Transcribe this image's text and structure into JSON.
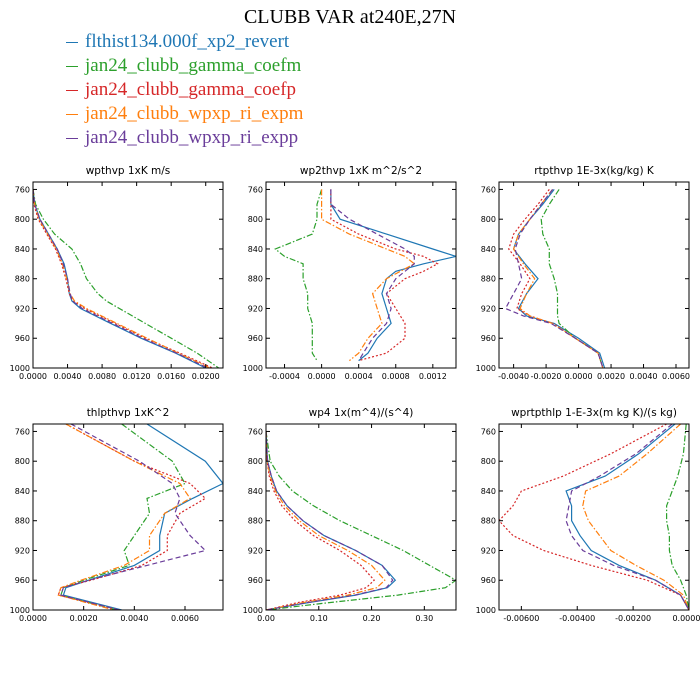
{
  "figure_title": "CLUBB VAR at240E,27N",
  "legend": [
    {
      "label": "flthist134.000f_xp2_revert",
      "color": "#1f77b4"
    },
    {
      "label": "jan24_clubb_gamma_coefm",
      "color": "#2ca02c"
    },
    {
      "label": "jan24_clubb_gamma_coefp",
      "color": "#d62728"
    },
    {
      "label": "jan24_clubb_wpxp_ri_expm",
      "color": "#ff7f0e"
    },
    {
      "label": "jan24_clubb_wpxp_ri_expp",
      "color": "#6a3d9a"
    }
  ],
  "chart_data": [
    {
      "type": "line",
      "title": "wpthvp  1xK m/s",
      "xlim": [
        0,
        0.022
      ],
      "ylim": [
        1000,
        750
      ],
      "xticks": [
        0.0,
        0.004,
        0.008,
        0.012,
        0.016,
        0.02
      ],
      "xtick_labels": [
        "0.0000",
        "0.0040",
        "0.0080",
        "0.0120",
        "0.0160",
        "0.0200"
      ],
      "yticks": [
        760,
        800,
        840,
        880,
        920,
        960,
        1000
      ],
      "ytick_labels": [
        "760",
        "800",
        "840",
        "880",
        "920",
        "960",
        "1000"
      ],
      "y": [
        760,
        780,
        800,
        820,
        840,
        860,
        880,
        900,
        910,
        920,
        940,
        960,
        980,
        1000
      ],
      "series": [
        {
          "name": "flthist134.000f_xp2_revert",
          "style": "solid",
          "values": [
            0.0,
            0.0002,
            0.0008,
            0.0018,
            0.0028,
            0.0036,
            0.004,
            0.0042,
            0.0045,
            0.0055,
            0.009,
            0.0125,
            0.0165,
            0.02
          ]
        },
        {
          "name": "jan24_clubb_gamma_coefm",
          "style": "dashdot",
          "values": [
            0.0,
            0.0003,
            0.0012,
            0.0025,
            0.0045,
            0.0055,
            0.0062,
            0.0075,
            0.0085,
            0.01,
            0.013,
            0.016,
            0.019,
            0.0215
          ]
        },
        {
          "name": "jan24_clubb_gamma_coefp",
          "style": "dotted",
          "values": [
            0.0,
            0.0001,
            0.0006,
            0.0016,
            0.0026,
            0.0033,
            0.0038,
            0.0042,
            0.0046,
            0.006,
            0.0095,
            0.013,
            0.017,
            0.0208
          ]
        },
        {
          "name": "jan24_clubb_wpxp_ri_expm",
          "style": "dashdot",
          "values": [
            0.0,
            0.0002,
            0.0007,
            0.0017,
            0.0027,
            0.0034,
            0.0039,
            0.0043,
            0.0048,
            0.0062,
            0.0097,
            0.0132,
            0.0168,
            0.0205
          ]
        },
        {
          "name": "jan24_clubb_wpxp_ri_expp",
          "style": "dashed",
          "values": [
            0.0,
            0.0002,
            0.0008,
            0.0018,
            0.0028,
            0.0035,
            0.004,
            0.0043,
            0.0046,
            0.0057,
            0.0092,
            0.0127,
            0.0166,
            0.0202
          ]
        }
      ]
    },
    {
      "type": "line",
      "title": "wp2thvp  1xK m^2/s^2",
      "xlim": [
        -0.0006,
        0.00145
      ],
      "ylim": [
        1000,
        750
      ],
      "xticks": [
        -0.0004,
        0.0,
        0.0004,
        0.0008,
        0.0012
      ],
      "xtick_labels": [
        "-0.0004",
        "0.0000",
        "0.0004",
        "0.0008",
        "0.0012"
      ],
      "yticks": [
        760,
        800,
        840,
        880,
        920,
        960,
        1000
      ],
      "ytick_labels": [
        "760",
        "800",
        "840",
        "880",
        "920",
        "960",
        "1000"
      ],
      "y": [
        760,
        780,
        800,
        820,
        840,
        850,
        860,
        870,
        880,
        900,
        920,
        940,
        960,
        980,
        990
      ],
      "series": [
        {
          "name": "flthist134.000f_xp2_revert",
          "style": "solid",
          "values": [
            0.0001,
            0.0001,
            0.0002,
            0.0007,
            0.0012,
            0.00145,
            0.0011,
            0.0008,
            0.0007,
            0.00065,
            0.0007,
            0.00075,
            0.0006,
            0.0005,
            0.0004
          ]
        },
        {
          "name": "jan24_clubb_gamma_coefm",
          "style": "dashdot",
          "values": [
            0.0,
            -5e-05,
            -5e-05,
            -0.0001,
            -0.0005,
            -0.0004,
            -0.0002,
            -0.0002,
            -0.0002,
            -0.00015,
            -0.00015,
            -0.0001,
            -0.0001,
            -0.0001,
            -5e-05
          ]
        },
        {
          "name": "jan24_clubb_gamma_coefp",
          "style": "dotted",
          "values": [
            0.0001,
            0.0001,
            0.0001,
            0.0004,
            0.0008,
            0.0011,
            0.00125,
            0.0011,
            0.0009,
            0.0007,
            0.0008,
            0.0009,
            0.0009,
            0.0007,
            0.0004
          ]
        },
        {
          "name": "jan24_clubb_wpxp_ri_expm",
          "style": "dashdot",
          "values": [
            0.0,
            0.0,
            0.0,
            0.0003,
            0.0007,
            0.0009,
            0.001,
            0.00085,
            0.0007,
            0.00055,
            0.0006,
            0.00065,
            0.0005,
            0.0004,
            0.0003
          ]
        },
        {
          "name": "jan24_clubb_wpxp_ri_expp",
          "style": "dashed",
          "values": [
            0.0001,
            0.0001,
            0.0003,
            0.0006,
            0.0009,
            0.001,
            0.001,
            0.0009,
            0.0008,
            0.0007,
            0.00075,
            0.0007,
            0.00055,
            0.00045,
            0.0004
          ]
        }
      ]
    },
    {
      "type": "line",
      "title": "rtpthvp  1E-3x(kg/kg) K",
      "xlim": [
        -0.0049,
        0.0068
      ],
      "ylim": [
        1000,
        750
      ],
      "xticks": [
        -0.004,
        -0.002,
        0.0,
        0.002,
        0.004,
        0.006
      ],
      "xtick_labels": [
        "-0.0040",
        "-0.0020",
        "0.0000",
        "0.0020",
        "0.0040",
        "0.0060"
      ],
      "yticks": [
        760,
        800,
        840,
        880,
        920,
        960,
        1000
      ],
      "ytick_labels": [
        "760",
        "800",
        "840",
        "880",
        "920",
        "960",
        "1000"
      ],
      "y": [
        760,
        780,
        800,
        820,
        840,
        860,
        880,
        900,
        920,
        930,
        940,
        960,
        980,
        1000
      ],
      "series": [
        {
          "name": "flthist134.000f_xp2_revert",
          "style": "solid",
          "values": [
            -0.0015,
            -0.0022,
            -0.003,
            -0.0037,
            -0.004,
            -0.0033,
            -0.0025,
            -0.0032,
            -0.0037,
            -0.0032,
            -0.0015,
            0.0,
            0.0013,
            0.0016
          ]
        },
        {
          "name": "jan24_clubb_gamma_coefm",
          "style": "dashdot",
          "values": [
            -0.0012,
            -0.0018,
            -0.0023,
            -0.0022,
            -0.0018,
            -0.0018,
            -0.0015,
            -0.0013,
            -0.0013,
            -0.0013,
            -0.0012,
            -0.0002,
            0.0012,
            0.0015
          ]
        },
        {
          "name": "jan24_clubb_gamma_coefp",
          "style": "dotted",
          "values": [
            -0.0018,
            -0.0025,
            -0.0033,
            -0.004,
            -0.0043,
            -0.0036,
            -0.003,
            -0.0035,
            -0.0038,
            -0.003,
            -0.0016,
            -0.0002,
            0.0012,
            0.0015
          ]
        },
        {
          "name": "jan24_clubb_wpxp_ri_expm",
          "style": "dashdot",
          "values": [
            -0.0016,
            -0.0023,
            -0.003,
            -0.0037,
            -0.004,
            -0.0034,
            -0.0027,
            -0.0032,
            -0.0036,
            -0.003,
            -0.0016,
            -0.0002,
            0.0012,
            0.0015
          ]
        },
        {
          "name": "jan24_clubb_wpxp_ri_expp",
          "style": "dashed",
          "values": [
            -0.0016,
            -0.0023,
            -0.003,
            -0.0036,
            -0.0039,
            -0.0037,
            -0.0035,
            -0.004,
            -0.0045,
            -0.0034,
            -0.0017,
            -0.0002,
            0.0012,
            0.0015
          ]
        }
      ]
    },
    {
      "type": "line",
      "title": "thlpthvp  1xK^2",
      "xlim": [
        0,
        0.0075
      ],
      "ylim": [
        1000,
        750
      ],
      "xticks": [
        0.0,
        0.002,
        0.004,
        0.006
      ],
      "xtick_labels": [
        "0.0000",
        "0.0020",
        "0.0040",
        "0.0060"
      ],
      "yticks": [
        760,
        800,
        840,
        880,
        920,
        960,
        1000
      ],
      "ytick_labels": [
        "760",
        "800",
        "840",
        "880",
        "920",
        "960",
        "1000"
      ],
      "y": [
        750,
        800,
        830,
        850,
        870,
        900,
        920,
        940,
        960,
        970,
        980,
        1000
      ],
      "series": [
        {
          "name": "flthist134.000f_xp2_revert",
          "style": "solid",
          "values": [
            0.0045,
            0.0068,
            0.0075,
            0.0063,
            0.0052,
            0.005,
            0.005,
            0.004,
            0.0022,
            0.0013,
            0.0012,
            0.0035
          ]
        },
        {
          "name": "jan24_clubb_gamma_coefm",
          "style": "dashdot",
          "values": [
            0.0035,
            0.0055,
            0.006,
            0.0045,
            0.0046,
            0.004,
            0.0036,
            0.0038,
            0.002,
            0.0012,
            0.0011,
            0.0033
          ]
        },
        {
          "name": "jan24_clubb_gamma_coefp",
          "style": "dotted",
          "values": [
            0.0013,
            0.004,
            0.0062,
            0.0068,
            0.0058,
            0.0053,
            0.0053,
            0.0043,
            0.0023,
            0.0011,
            0.001,
            0.0034
          ]
        },
        {
          "name": "jan24_clubb_wpxp_ri_expm",
          "style": "dashdot",
          "values": [
            0.0013,
            0.004,
            0.0058,
            0.0062,
            0.0052,
            0.0046,
            0.0046,
            0.0036,
            0.0019,
            0.0011,
            0.001,
            0.0032
          ]
        },
        {
          "name": "jan24_clubb_wpxp_ri_expp",
          "style": "dashed",
          "values": [
            0.0015,
            0.0042,
            0.0055,
            0.0058,
            0.0056,
            0.0062,
            0.0068,
            0.0045,
            0.0022,
            0.0012,
            0.0011,
            0.0034
          ]
        }
      ]
    },
    {
      "type": "line",
      "title": "wp4  1x(m^4)/(s^4)",
      "xlim": [
        0,
        0.36
      ],
      "ylim": [
        1000,
        750
      ],
      "xticks": [
        0.0,
        0.1,
        0.2,
        0.3
      ],
      "xtick_labels": [
        "0.00",
        "0.10",
        "0.20",
        "0.30"
      ],
      "yticks": [
        760,
        800,
        840,
        880,
        920,
        960,
        1000
      ],
      "ytick_labels": [
        "760",
        "800",
        "840",
        "880",
        "920",
        "960",
        "1000"
      ],
      "y": [
        760,
        800,
        820,
        840,
        860,
        880,
        900,
        920,
        940,
        960,
        970,
        980,
        990,
        1000
      ],
      "series": [
        {
          "name": "flthist134.000f_xp2_revert",
          "style": "solid",
          "values": [
            0.0,
            0.003,
            0.01,
            0.02,
            0.04,
            0.07,
            0.11,
            0.17,
            0.22,
            0.245,
            0.23,
            0.17,
            0.08,
            0.0
          ]
        },
        {
          "name": "jan24_clubb_gamma_coefm",
          "style": "dashdot",
          "values": [
            0.0,
            0.008,
            0.025,
            0.05,
            0.09,
            0.14,
            0.2,
            0.26,
            0.31,
            0.36,
            0.34,
            0.25,
            0.12,
            0.0
          ]
        },
        {
          "name": "jan24_clubb_gamma_coefp",
          "style": "dotted",
          "values": [
            0.0,
            0.002,
            0.006,
            0.015,
            0.03,
            0.055,
            0.09,
            0.14,
            0.18,
            0.205,
            0.19,
            0.14,
            0.06,
            0.0
          ]
        },
        {
          "name": "jan24_clubb_wpxp_ri_expm",
          "style": "dashdot",
          "values": [
            0.0,
            0.002,
            0.008,
            0.018,
            0.035,
            0.063,
            0.1,
            0.155,
            0.2,
            0.225,
            0.21,
            0.155,
            0.07,
            0.0
          ]
        },
        {
          "name": "jan24_clubb_wpxp_ri_expp",
          "style": "dashed",
          "values": [
            0.0,
            0.003,
            0.01,
            0.02,
            0.04,
            0.07,
            0.11,
            0.17,
            0.22,
            0.24,
            0.228,
            0.168,
            0.078,
            0.0
          ]
        }
      ]
    },
    {
      "type": "line",
      "title": "wprtpthlp  1-E-3x(m kg K)/(s kg)",
      "xlim": [
        -0.0068,
        0.0
      ],
      "ylim": [
        1000,
        750
      ],
      "xticks": [
        -0.006,
        -0.004,
        -0.002,
        0.0
      ],
      "xtick_labels": [
        "-0.00600",
        "-0.00400",
        "-0.00200",
        "0.00000"
      ],
      "yticks": [
        760,
        800,
        840,
        880,
        920,
        960,
        1000
      ],
      "ytick_labels": [
        "760",
        "800",
        "840",
        "880",
        "920",
        "960",
        "1000"
      ],
      "y": [
        750,
        790,
        820,
        840,
        860,
        880,
        900,
        920,
        940,
        960,
        980,
        1000
      ],
      "series": [
        {
          "name": "flthist134.000f_xp2_revert",
          "style": "solid",
          "values": [
            -0.0005,
            -0.0018,
            -0.003,
            -0.0044,
            -0.0042,
            -0.0042,
            -0.0039,
            -0.0035,
            -0.0025,
            -0.0012,
            -0.0003,
            0.0
          ]
        },
        {
          "name": "jan24_clubb_gamma_coefm",
          "style": "dashdot",
          "values": [
            -0.0001,
            -0.0002,
            -0.0004,
            -0.0006,
            -0.0008,
            -0.0008,
            -0.0007,
            -0.0007,
            -0.0006,
            -0.0003,
            -0.0001,
            0.0
          ]
        },
        {
          "name": "jan24_clubb_gamma_coefp",
          "style": "dotted",
          "values": [
            -0.0008,
            -0.0028,
            -0.0045,
            -0.006,
            -0.0063,
            -0.0068,
            -0.0063,
            -0.0052,
            -0.0035,
            -0.0015,
            -0.0003,
            0.0
          ]
        },
        {
          "name": "jan24_clubb_wpxp_ri_expm",
          "style": "dashdot",
          "values": [
            -0.0003,
            -0.0015,
            -0.0025,
            -0.0037,
            -0.0038,
            -0.0036,
            -0.0032,
            -0.0028,
            -0.0019,
            -0.0009,
            -0.0002,
            0.0
          ]
        },
        {
          "name": "jan24_clubb_wpxp_ri_expp",
          "style": "dashed",
          "values": [
            -0.0006,
            -0.0019,
            -0.0032,
            -0.0042,
            -0.0043,
            -0.0044,
            -0.0042,
            -0.0038,
            -0.0027,
            -0.0012,
            -0.0003,
            0.0
          ]
        }
      ]
    }
  ]
}
